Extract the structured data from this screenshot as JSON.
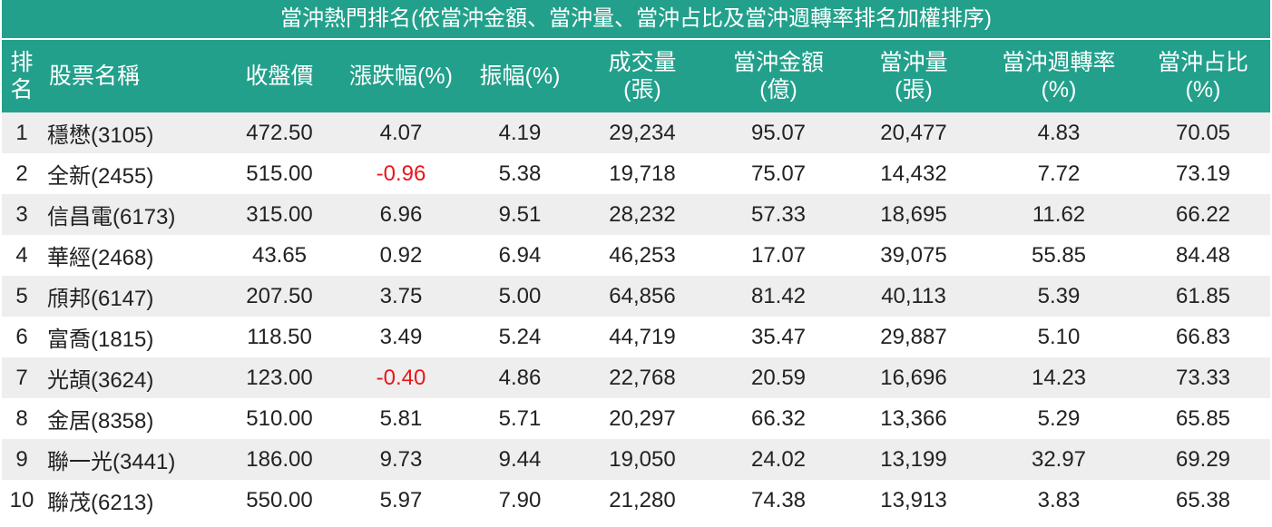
{
  "title": "當沖熱門排名(依當沖金額、當沖量、當沖占比及當沖週轉率排名加權排序)",
  "table": {
    "header": [
      "排\n名",
      "股票名稱",
      "收盤價",
      "漲跌幅(%)",
      "振幅(%)",
      "成交量\n(張)",
      "當沖金額\n(億)",
      "當沖量\n(張)",
      "當沖週轉率\n(%)",
      "當沖占比\n(%)"
    ],
    "rows": [
      [
        "1",
        "穩懋(3105)",
        "472.50",
        "4.07",
        "4.19",
        "29,234",
        "95.07",
        "20,477",
        "4.83",
        "70.05"
      ],
      [
        "2",
        "全新(2455)",
        "515.00",
        "-0.96",
        "5.38",
        "19,718",
        "75.07",
        "14,432",
        "7.72",
        "73.19"
      ],
      [
        "3",
        "信昌電(6173)",
        "315.00",
        "6.96",
        "9.51",
        "28,232",
        "57.33",
        "18,695",
        "11.62",
        "66.22"
      ],
      [
        "4",
        "華經(2468)",
        "43.65",
        "0.92",
        "6.94",
        "46,253",
        "17.07",
        "39,075",
        "55.85",
        "84.48"
      ],
      [
        "5",
        "頎邦(6147)",
        "207.50",
        "3.75",
        "5.00",
        "64,856",
        "81.42",
        "40,113",
        "5.39",
        "61.85"
      ],
      [
        "6",
        "富喬(1815)",
        "118.50",
        "3.49",
        "5.24",
        "44,719",
        "35.47",
        "29,887",
        "5.10",
        "66.83"
      ],
      [
        "7",
        "光頡(3624)",
        "123.00",
        "-0.40",
        "4.86",
        "22,768",
        "20.59",
        "16,696",
        "14.23",
        "73.33"
      ],
      [
        "8",
        "金居(8358)",
        "510.00",
        "5.81",
        "5.71",
        "20,297",
        "66.32",
        "13,366",
        "5.29",
        "65.85"
      ],
      [
        "9",
        "聯一光(3441)",
        "186.00",
        "9.73",
        "9.44",
        "19,050",
        "24.02",
        "13,199",
        "32.97",
        "69.29"
      ],
      [
        "10",
        "聯茂(6213)",
        "550.00",
        "5.97",
        "7.90",
        "21,280",
        "74.38",
        "13,913",
        "3.83",
        "65.38"
      ]
    ]
  }
}
